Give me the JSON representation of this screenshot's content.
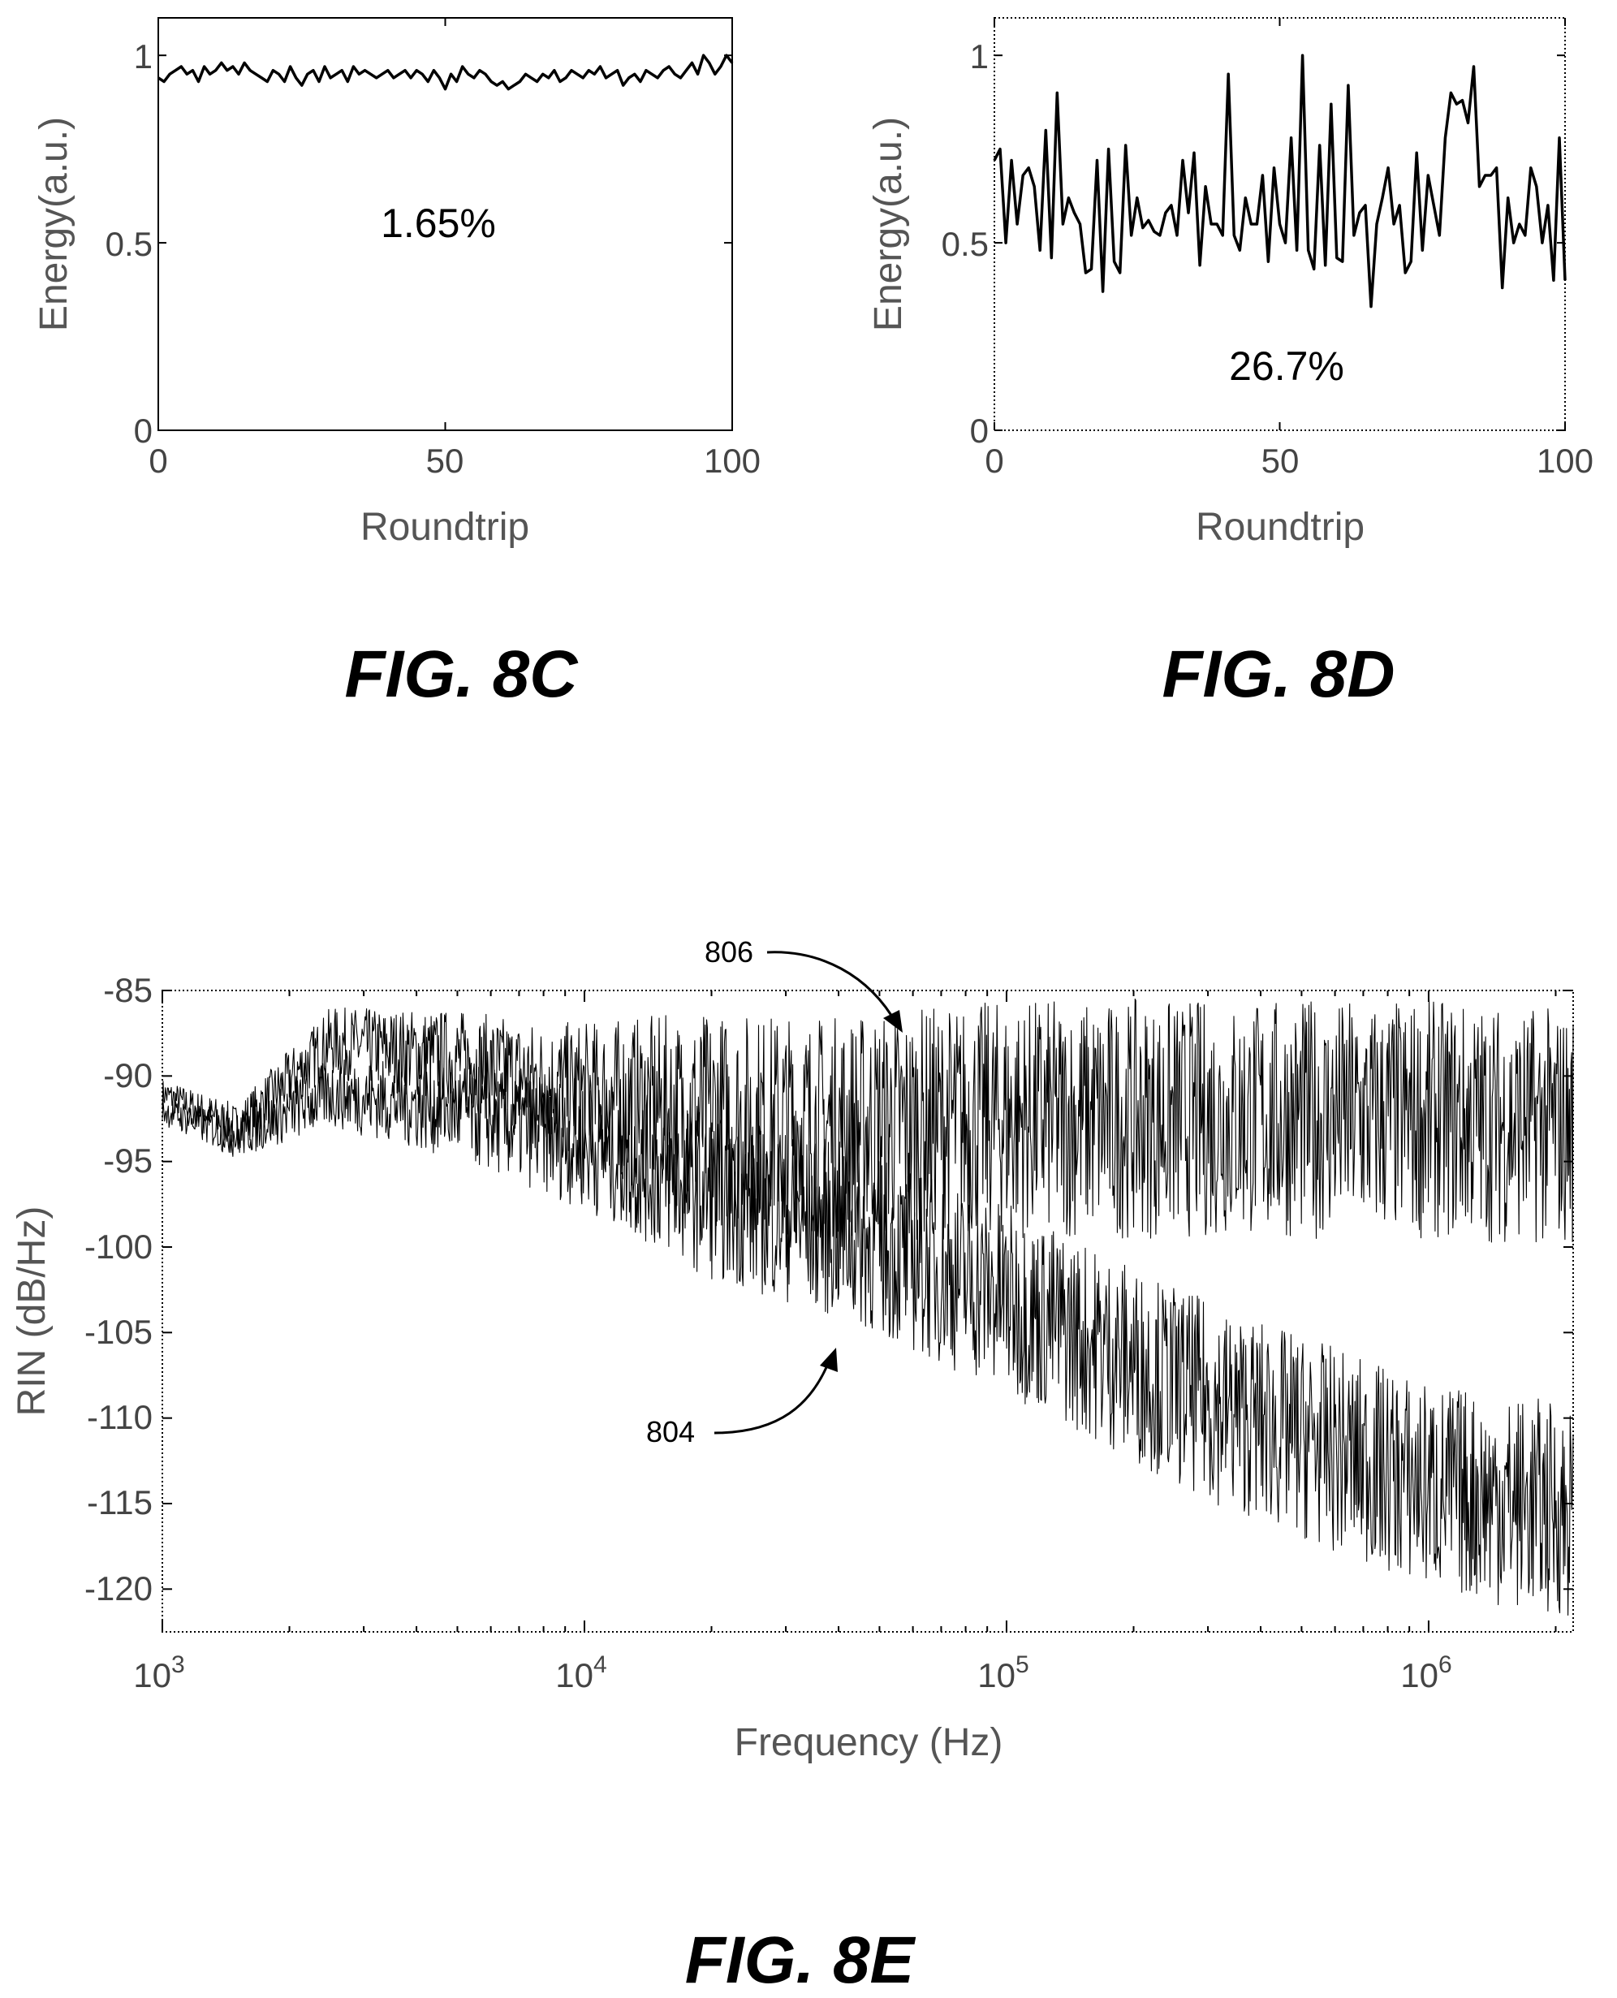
{
  "figures": {
    "fig_8c": "FIG. 8C",
    "fig_8d": "FIG. 8D",
    "fig_8e": "FIG. 8E"
  },
  "colors": {
    "ink": "#000000",
    "axis_text": "#444444",
    "background": "#ffffff"
  },
  "chart_data": [
    {
      "id": "8c",
      "type": "line",
      "xlabel": "Roundtrip",
      "ylabel": "Energy(a.u.)",
      "xlim": [
        0,
        100
      ],
      "ylim": [
        0,
        1.1
      ],
      "xticks": [
        "0",
        "50",
        "100"
      ],
      "yticks": [
        "0",
        "0.5",
        "1"
      ],
      "annotation": "1.65%",
      "grid": false,
      "series": [
        {
          "x": [
            0,
            1,
            2,
            3,
            4,
            5,
            6,
            7,
            8,
            9,
            10,
            11,
            12,
            13,
            14,
            15,
            16,
            17,
            18,
            19,
            20,
            21,
            22,
            23,
            24,
            25,
            26,
            27,
            28,
            29,
            30,
            31,
            32,
            33,
            34,
            35,
            36,
            37,
            38,
            39,
            40,
            41,
            42,
            43,
            44,
            45,
            46,
            47,
            48,
            49,
            50,
            51,
            52,
            53,
            54,
            55,
            56,
            57,
            58,
            59,
            60,
            61,
            62,
            63,
            64,
            65,
            66,
            67,
            68,
            69,
            70,
            71,
            72,
            73,
            74,
            75,
            76,
            77,
            78,
            79,
            80,
            81,
            82,
            83,
            84,
            85,
            86,
            87,
            88,
            89,
            90,
            91,
            92,
            93,
            94,
            95,
            96,
            97,
            98,
            99,
            100
          ],
          "values": [
            0.94,
            0.93,
            0.95,
            0.96,
            0.97,
            0.95,
            0.96,
            0.93,
            0.97,
            0.95,
            0.96,
            0.98,
            0.96,
            0.97,
            0.95,
            0.98,
            0.96,
            0.95,
            0.94,
            0.93,
            0.96,
            0.95,
            0.93,
            0.97,
            0.94,
            0.92,
            0.95,
            0.96,
            0.93,
            0.97,
            0.94,
            0.95,
            0.96,
            0.93,
            0.97,
            0.95,
            0.96,
            0.95,
            0.94,
            0.95,
            0.96,
            0.94,
            0.95,
            0.96,
            0.94,
            0.96,
            0.95,
            0.93,
            0.96,
            0.94,
            0.91,
            0.95,
            0.93,
            0.97,
            0.95,
            0.94,
            0.96,
            0.95,
            0.93,
            0.92,
            0.93,
            0.91,
            0.92,
            0.93,
            0.95,
            0.94,
            0.93,
            0.95,
            0.94,
            0.96,
            0.93,
            0.94,
            0.96,
            0.95,
            0.94,
            0.96,
            0.95,
            0.97,
            0.94,
            0.95,
            0.96,
            0.92,
            0.94,
            0.95,
            0.93,
            0.96,
            0.95,
            0.94,
            0.96,
            0.97,
            0.95,
            0.94,
            0.96,
            0.98,
            0.95,
            1.0,
            0.98,
            0.95,
            0.97,
            1.0,
            0.98
          ]
        }
      ]
    },
    {
      "id": "8d",
      "type": "line",
      "xlabel": "Roundtrip",
      "ylabel": "Energy(a.u.)",
      "xlim": [
        0,
        100
      ],
      "ylim": [
        0,
        1.1
      ],
      "xticks": [
        "0",
        "50",
        "100"
      ],
      "yticks": [
        "0",
        "0.5",
        "1"
      ],
      "annotation": "26.7%",
      "grid": false,
      "series": [
        {
          "x": [
            0,
            1,
            2,
            3,
            4,
            5,
            6,
            7,
            8,
            9,
            10,
            11,
            12,
            13,
            14,
            15,
            16,
            17,
            18,
            19,
            20,
            21,
            22,
            23,
            24,
            25,
            26,
            27,
            28,
            29,
            30,
            31,
            32,
            33,
            34,
            35,
            36,
            37,
            38,
            39,
            40,
            41,
            42,
            43,
            44,
            45,
            46,
            47,
            48,
            49,
            50,
            51,
            52,
            53,
            54,
            55,
            56,
            57,
            58,
            59,
            60,
            61,
            62,
            63,
            64,
            65,
            66,
            67,
            68,
            69,
            70,
            71,
            72,
            73,
            74,
            75,
            76,
            77,
            78,
            79,
            80,
            81,
            82,
            83,
            84,
            85,
            86,
            87,
            88,
            89,
            90,
            91,
            92,
            93,
            94,
            95,
            96,
            97,
            98,
            99,
            100
          ],
          "values": [
            0.72,
            0.75,
            0.5,
            0.72,
            0.55,
            0.68,
            0.7,
            0.65,
            0.48,
            0.8,
            0.46,
            0.9,
            0.55,
            0.62,
            0.58,
            0.55,
            0.42,
            0.43,
            0.72,
            0.37,
            0.75,
            0.45,
            0.42,
            0.76,
            0.52,
            0.62,
            0.54,
            0.56,
            0.53,
            0.52,
            0.58,
            0.6,
            0.52,
            0.72,
            0.58,
            0.74,
            0.44,
            0.65,
            0.55,
            0.55,
            0.52,
            0.95,
            0.52,
            0.48,
            0.62,
            0.55,
            0.55,
            0.68,
            0.45,
            0.7,
            0.55,
            0.5,
            0.78,
            0.48,
            1.0,
            0.48,
            0.43,
            0.76,
            0.44,
            0.87,
            0.46,
            0.45,
            0.92,
            0.52,
            0.58,
            0.6,
            0.33,
            0.55,
            0.62,
            0.7,
            0.55,
            0.6,
            0.42,
            0.45,
            0.74,
            0.48,
            0.68,
            0.6,
            0.52,
            0.78,
            0.9,
            0.87,
            0.88,
            0.82,
            0.97,
            0.65,
            0.68,
            0.68,
            0.7,
            0.38,
            0.62,
            0.5,
            0.55,
            0.52,
            0.7,
            0.65,
            0.5,
            0.6,
            0.4,
            0.78,
            0.4
          ]
        }
      ]
    },
    {
      "id": "8e",
      "type": "line",
      "xlabel": "Frequency (Hz)",
      "ylabel": "RIN (dB/Hz)",
      "xscale": "log",
      "xlim": [
        1000,
        2200000
      ],
      "ylim": [
        -122.5,
        -85
      ],
      "xtick_base": "10",
      "xticks": [
        {
          "value": 1000,
          "exponent": "3"
        },
        {
          "value": 10000,
          "exponent": "4"
        },
        {
          "value": 100000,
          "exponent": "5"
        },
        {
          "value": 1000000,
          "exponent": "6"
        }
      ],
      "yticks": [
        "-85",
        "-90",
        "-95",
        "-100",
        "-105",
        "-110",
        "-115",
        "-120"
      ],
      "grid": false,
      "series": [
        {
          "name": "806",
          "trend": [
            [
              1000,
              -91
            ],
            [
              1500,
              -93
            ],
            [
              2500,
              -88
            ],
            [
              5000,
              -89
            ],
            [
              10000,
              -91
            ],
            [
              20000,
              -92.5
            ],
            [
              40000,
              -93
            ],
            [
              100000,
              -92.5
            ],
            [
              300000,
              -92.5
            ],
            [
              1000000,
              -92.5
            ],
            [
              2200000,
              -93
            ]
          ],
          "noise_db": [
            [
              1000,
              0.6
            ],
            [
              8000,
              2.5
            ],
            [
              20000,
              4.5
            ],
            [
              100000,
              5
            ],
            [
              2200000,
              5
            ]
          ]
        },
        {
          "name": "804",
          "trend": [
            [
              1000,
              -92
            ],
            [
              1500,
              -93.5
            ],
            [
              2500,
              -91
            ],
            [
              5000,
              -92
            ],
            [
              10000,
              -94
            ],
            [
              20000,
              -97
            ],
            [
              40000,
              -99
            ],
            [
              100000,
              -103
            ],
            [
              300000,
              -109
            ],
            [
              1000000,
              -114
            ],
            [
              2200000,
              -115.5
            ]
          ],
          "noise_db": [
            [
              1000,
              0.6
            ],
            [
              8000,
              2.5
            ],
            [
              20000,
              3.5
            ],
            [
              100000,
              4
            ],
            [
              2200000,
              4.5
            ]
          ]
        }
      ]
    }
  ]
}
